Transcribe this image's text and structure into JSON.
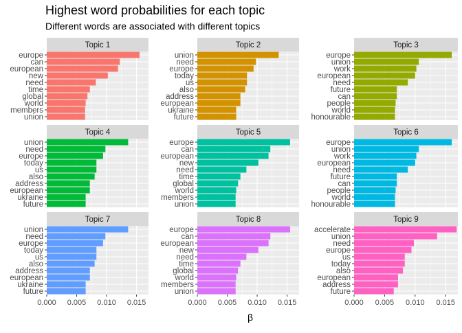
{
  "chart_data": {
    "type": "bar",
    "orientation": "horizontal",
    "title": "Highest word probabilities for each topic",
    "subtitle": "Different words are associated with different topics",
    "xlabel": "β",
    "ylabel": "",
    "xlim": [
      0,
      0.017
    ],
    "xticks": [
      0.0,
      0.005,
      0.01,
      0.015
    ],
    "xtick_labels": [
      "0.000",
      "0.005",
      "0.010",
      "0.015"
    ],
    "grid": true,
    "legend": "none",
    "panels": [
      {
        "strip": "Topic 1",
        "color": "#F8766D",
        "words": [
          "europe",
          "can",
          "european",
          "new",
          "need",
          "time",
          "global",
          "world",
          "members",
          "union"
        ],
        "values": [
          0.0155,
          0.0122,
          0.0119,
          0.0102,
          0.0082,
          0.0072,
          0.0068,
          0.0065,
          0.0064,
          0.0064
        ]
      },
      {
        "strip": "Topic 2",
        "color": "#D39200",
        "words": [
          "union",
          "need",
          "europe",
          "today",
          "us",
          "also",
          "address",
          "european",
          "ukraine",
          "future"
        ],
        "values": [
          0.0136,
          0.0098,
          0.0094,
          0.0083,
          0.0083,
          0.008,
          0.0072,
          0.0072,
          0.0065,
          0.0065
        ]
      },
      {
        "strip": "Topic 3",
        "color": "#93AA00",
        "words": [
          "europe",
          "union",
          "work",
          "european",
          "need",
          "future",
          "can",
          "people",
          "world",
          "honourable"
        ],
        "values": [
          0.016,
          0.0106,
          0.0102,
          0.01,
          0.0088,
          0.007,
          0.007,
          0.0068,
          0.0067,
          0.0067
        ]
      },
      {
        "strip": "Topic 4",
        "color": "#00BA38",
        "words": [
          "union",
          "need",
          "europe",
          "today",
          "us",
          "also",
          "address",
          "european",
          "ukraine",
          "future"
        ],
        "values": [
          0.0136,
          0.0098,
          0.0094,
          0.0083,
          0.0083,
          0.008,
          0.0072,
          0.0072,
          0.0065,
          0.0065
        ]
      },
      {
        "strip": "Topic 5",
        "color": "#00C19F",
        "words": [
          "europe",
          "can",
          "european",
          "new",
          "need",
          "time",
          "global",
          "world",
          "members",
          "union"
        ],
        "values": [
          0.0155,
          0.0122,
          0.0119,
          0.0102,
          0.0082,
          0.0072,
          0.0068,
          0.0065,
          0.0064,
          0.0064
        ]
      },
      {
        "strip": "Topic 6",
        "color": "#00B9E3",
        "words": [
          "europe",
          "union",
          "work",
          "european",
          "need",
          "future",
          "can",
          "people",
          "world",
          "honourable"
        ],
        "values": [
          0.016,
          0.0106,
          0.0102,
          0.01,
          0.0088,
          0.007,
          0.007,
          0.0068,
          0.0067,
          0.0067
        ]
      },
      {
        "strip": "Topic 7",
        "color": "#619CFF",
        "words": [
          "union",
          "need",
          "europe",
          "today",
          "us",
          "also",
          "address",
          "european",
          "ukraine",
          "future"
        ],
        "values": [
          0.0136,
          0.0098,
          0.0094,
          0.0083,
          0.0083,
          0.008,
          0.0072,
          0.0072,
          0.0065,
          0.0065
        ]
      },
      {
        "strip": "Topic 8",
        "color": "#DB72FB",
        "words": [
          "europe",
          "can",
          "european",
          "new",
          "need",
          "time",
          "global",
          "world",
          "members",
          "union"
        ],
        "values": [
          0.0155,
          0.0122,
          0.0119,
          0.0102,
          0.0082,
          0.0072,
          0.0068,
          0.0065,
          0.0064,
          0.0064
        ]
      },
      {
        "strip": "Topic 9",
        "color": "#FF61C3",
        "words": [
          "accelerate",
          "union",
          "need",
          "europe",
          "us",
          "today",
          "also",
          "european",
          "address",
          "future"
        ],
        "values": [
          0.0168,
          0.0136,
          0.0098,
          0.0094,
          0.0083,
          0.0083,
          0.008,
          0.0072,
          0.0072,
          0.0065
        ]
      }
    ]
  }
}
